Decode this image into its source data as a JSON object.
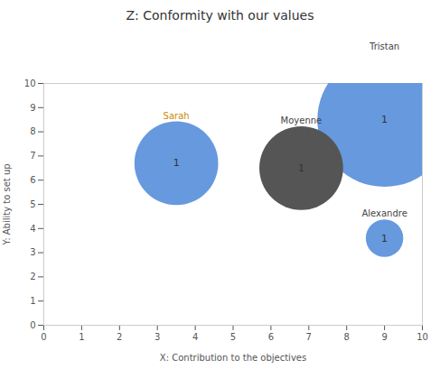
{
  "chart_data": {
    "type": "bubble",
    "title": "Z: Conformity with our values",
    "xlabel": "X: Contribution to the objectives",
    "ylabel": "Y: Ability to set up",
    "labels": [
      "Sarah",
      "Tristan",
      "Moyenne",
      "Alexandre"
    ],
    "x": [
      3.5,
      9.0,
      6.8,
      9.0
    ],
    "y": [
      6.7,
      8.5,
      6.5,
      3.6
    ],
    "sizes": [
      3500,
      9000,
      3500,
      700
    ],
    "colors": [
      "#6699dd",
      "#6699dd",
      "#555555",
      "#6699dd"
    ],
    "label_colors": [
      "#cc8800",
      "#444444",
      "#444444",
      "#444444"
    ],
    "values": [
      1,
      1,
      1,
      1
    ],
    "data_labels": true,
    "xlim": [
      0,
      10
    ],
    "ylim": [
      0,
      10
    ],
    "xticks": [
      0,
      1,
      2,
      3,
      4,
      5,
      6,
      7,
      8,
      9,
      10
    ],
    "yticks": [
      0,
      1,
      2,
      3,
      4,
      5,
      6,
      7,
      8,
      9,
      10
    ],
    "grid": false
  }
}
